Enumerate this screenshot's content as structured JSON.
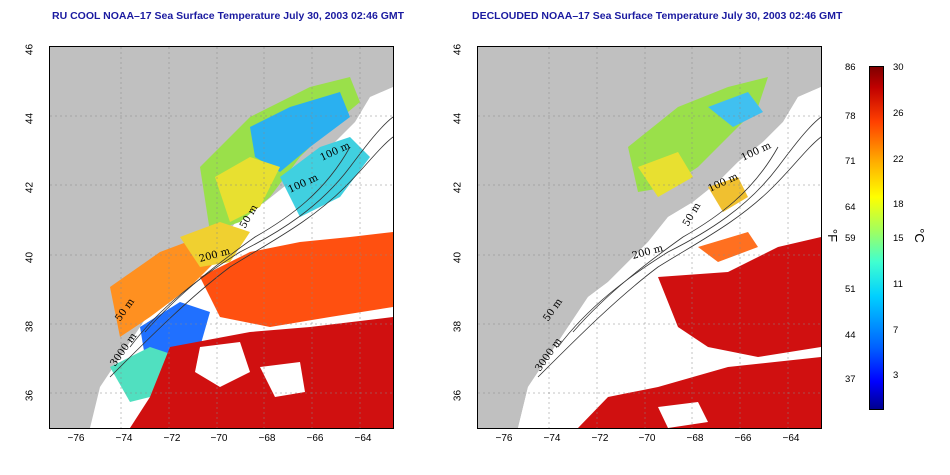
{
  "left_panel": {
    "title": "RU COOL NOAA–17 Sea Surface Temperature July 30, 2003 02:46 GMT",
    "contour_labels": [
      "100 m",
      "100 m",
      "50 m",
      "200 m",
      "50 m",
      "3000 m"
    ]
  },
  "right_panel": {
    "title": "DECLOUDED NOAA–17 Sea Surface Temperature July 30, 2003 02:46 GMT",
    "contour_labels": [
      "100 m",
      "100 m",
      "50 m",
      "200 m",
      "50 m",
      "3000 m"
    ]
  },
  "axes": {
    "x_ticks": [
      "−76",
      "−74",
      "−72",
      "−70",
      "−68",
      "−66",
      "−64"
    ],
    "y_ticks": [
      "46",
      "44",
      "42",
      "40",
      "38",
      "36"
    ],
    "lon_range": [
      -77.2,
      -62.8
    ],
    "lat_range": [
      35,
      46
    ]
  },
  "colorbar": {
    "fahrenheit_labels": [
      "86",
      "78",
      "71",
      "64",
      "59",
      "51",
      "44",
      "37"
    ],
    "celsius_labels": [
      "30",
      "26",
      "22",
      "18",
      "15",
      "11",
      "7",
      "3"
    ],
    "fahrenheit_unit": "°F",
    "celsius_unit": "°C",
    "range_c": [
      0,
      30
    ]
  },
  "colors": {
    "land": "#c0c0c0",
    "cloud": "#ffffff",
    "title": "#1a1aa0"
  }
}
